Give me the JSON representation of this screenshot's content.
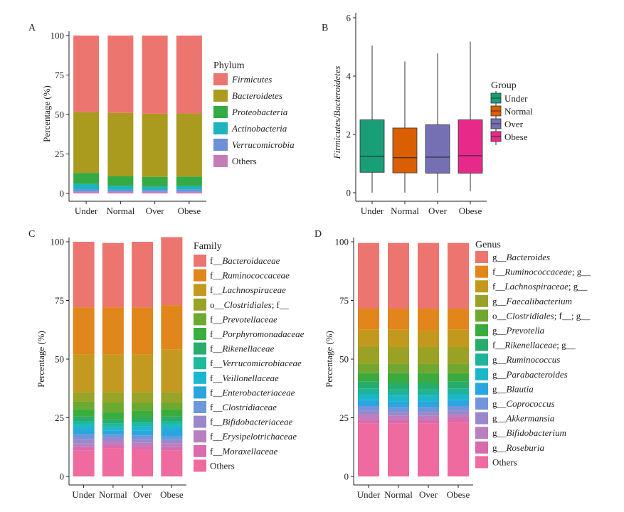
{
  "figure": {
    "panels": [
      {
        "id": "A",
        "letter": "A",
        "ylabel": "Percentage (%)",
        "legend_title": "Phylum"
      },
      {
        "id": "B",
        "letter": "B",
        "ylabel": "Firmicutes/Bacteroidetes",
        "legend_title": "Group"
      },
      {
        "id": "C",
        "letter": "C",
        "ylabel": "Percentage (%)",
        "legend_title": "Family"
      },
      {
        "id": "D",
        "letter": "D",
        "ylabel": "Percentage (%)",
        "legend_title": "Genus"
      }
    ]
  },
  "chart_data": [
    {
      "panel": "A",
      "type": "bar",
      "stacked": true,
      "categories": [
        "Under",
        "Normal",
        "Over",
        "Obese"
      ],
      "ylim": [
        0,
        100
      ],
      "yticks": [
        0,
        25,
        50,
        75,
        100
      ],
      "xlabel": "",
      "ylabel": "Percentage (%)",
      "legend_title": "Phylum",
      "series": [
        {
          "name": "Others",
          "prefix": "",
          "italic": "",
          "suffix": "",
          "display": "Others",
          "color": "#c77cba",
          "values": [
            1.0,
            1.0,
            1.0,
            1.0
          ]
        },
        {
          "name": "Verrucomicrobia",
          "prefix": "",
          "italic": "Verrucomicrobia",
          "suffix": "",
          "display": "Verrucomicrobia",
          "color": "#6d8fd8",
          "values": [
            1.5,
            1.3,
            1.2,
            1.4
          ]
        },
        {
          "name": "Actinobacteria",
          "prefix": "",
          "italic": "Actinobacteria",
          "suffix": "",
          "display": "Actinobacteria",
          "color": "#1fb3c0",
          "values": [
            3.5,
            2.5,
            2.0,
            2.3
          ]
        },
        {
          "name": "Proteobacteria",
          "prefix": "",
          "italic": "Proteobacteria",
          "suffix": "",
          "display": "Proteobacteria",
          "color": "#33aa44",
          "values": [
            7.0,
            6.2,
            6.3,
            6.0
          ]
        },
        {
          "name": "Bacteroidetes",
          "prefix": "",
          "italic": "Bacteroidetes",
          "suffix": "",
          "display": "Bacteroidetes",
          "color": "#aa9a1e",
          "values": [
            38.5,
            40.0,
            40.0,
            40.0
          ]
        },
        {
          "name": "Firmicutes",
          "prefix": "",
          "italic": "Firmicutes",
          "suffix": "",
          "display": "Firmicutes",
          "color": "#ec7570",
          "values": [
            48.5,
            49.0,
            49.5,
            49.3
          ]
        }
      ]
    },
    {
      "panel": "B",
      "type": "boxplot",
      "categories": [
        "Under",
        "Normal",
        "Over",
        "Obese"
      ],
      "ylim": [
        -0.3,
        6.2
      ],
      "yticks": [
        0,
        2,
        4,
        6
      ],
      "xlabel": "",
      "ylabel": "Firmicutes/Bacteroidetes",
      "legend_title": "Group",
      "series": [
        {
          "name": "Under",
          "color": "#1a9e77",
          "whisker_low": 0.0,
          "q1": 0.7,
          "median": 1.25,
          "q3": 2.5,
          "whisker_high": 5.05
        },
        {
          "name": "Normal",
          "color": "#d95f02",
          "whisker_low": 0.0,
          "q1": 0.68,
          "median": 1.2,
          "q3": 2.22,
          "whisker_high": 4.5
        },
        {
          "name": "Over",
          "color": "#7570b3",
          "whisker_low": 0.0,
          "q1": 0.67,
          "median": 1.22,
          "q3": 2.33,
          "whisker_high": 4.78
        },
        {
          "name": "Obese",
          "color": "#e7298a",
          "whisker_low": 0.05,
          "q1": 0.67,
          "median": 1.27,
          "q3": 2.5,
          "whisker_high": 5.18
        }
      ]
    },
    {
      "panel": "C",
      "type": "bar",
      "stacked": true,
      "categories": [
        "Under",
        "Normal",
        "Over",
        "Obese"
      ],
      "ylim": [
        0,
        100
      ],
      "yticks": [
        0,
        25,
        50,
        75,
        100
      ],
      "xlabel": "",
      "ylabel": "Percentage (%)",
      "legend_title": "Family",
      "series": [
        {
          "name": "Others",
          "prefix": "",
          "italic": "",
          "suffix": "",
          "display": "Others",
          "color": "#ef6a9f",
          "values": [
            11.0,
            12.0,
            11.5,
            11.0
          ]
        },
        {
          "name": "f__Moraxellaceae",
          "prefix": "f__",
          "italic": "Moraxellaceae",
          "suffix": "",
          "display": "f__Moraxellaceae",
          "color": "#d96bae",
          "values": [
            1.5,
            1.5,
            1.5,
            1.5
          ]
        },
        {
          "name": "f__Erysipelotrichaceae",
          "prefix": "f__",
          "italic": "Erysipelotrichaceae",
          "suffix": "",
          "display": "f__Erysipelotrichaceae",
          "color": "#b97fc0",
          "values": [
            1.5,
            1.5,
            1.5,
            1.5
          ]
        },
        {
          "name": "f__Bifidobacteriaceae",
          "prefix": "f__",
          "italic": "Bifidobacteriaceae",
          "suffix": "",
          "display": "f__Bifidobacteriaceae",
          "color": "#9a88cc",
          "values": [
            2.0,
            1.5,
            1.5,
            1.5
          ]
        },
        {
          "name": "f__Clostridiaceae",
          "prefix": "f__",
          "italic": "Clostridiaceae",
          "suffix": "",
          "display": "f__Clostridiaceae",
          "color": "#6e97d8",
          "values": [
            2.0,
            1.5,
            1.5,
            1.5
          ]
        },
        {
          "name": "f__Enterobacteriaceae",
          "prefix": "f__",
          "italic": "Enterobacteriaceae",
          "suffix": "",
          "display": "f__Enterobacteriaceae",
          "color": "#2ba5df",
          "values": [
            2.0,
            1.5,
            2.0,
            3.0
          ]
        },
        {
          "name": "f__Veillonellaceae",
          "prefix": "f__",
          "italic": "Veillonellaceae",
          "suffix": "",
          "display": "f__Veillonellaceae",
          "color": "#1cb6cf",
          "values": [
            2.0,
            1.5,
            2.0,
            2.0
          ]
        },
        {
          "name": "f__Verrucomicrobiaceae",
          "prefix": "f__",
          "italic": "Verrucomicrobiaceae",
          "suffix": "",
          "display": "f__Verrucomicrobiaceae",
          "color": "#1dba9c",
          "values": [
            1.5,
            1.5,
            1.5,
            1.5
          ]
        },
        {
          "name": "f__Rikenellaceae",
          "prefix": "f__",
          "italic": "Rikenellaceae",
          "suffix": "",
          "display": "f__Rikenellaceae",
          "color": "#28ad6c",
          "values": [
            2.0,
            2.0,
            2.0,
            2.0
          ]
        },
        {
          "name": "f__Porphyromonadaceae",
          "prefix": "f__",
          "italic": "Porphyromonadaceae",
          "suffix": "",
          "display": "f__Porphyromonadaceae",
          "color": "#3aad3d",
          "values": [
            3.0,
            3.0,
            3.0,
            3.0
          ]
        },
        {
          "name": "f__Prevotellaceae",
          "prefix": "f__",
          "italic": "Prevotellaceae",
          "suffix": "",
          "display": "f__Prevotellaceae",
          "color": "#6ba931",
          "values": [
            3.5,
            4.0,
            3.5,
            3.0
          ]
        },
        {
          "name": "o__Clostridiales; f__",
          "prefix": "o__",
          "italic": "Clostridiales",
          "suffix": "; f__",
          "display": "o__Clostridiales; f__",
          "color": "#98a327",
          "values": [
            4.0,
            4.5,
            4.5,
            4.5
          ]
        },
        {
          "name": "f__Lachnospiraceae",
          "prefix": "f__",
          "italic": "Lachnospiraceae",
          "suffix": "",
          "display": "f__Lachnospiraceae",
          "color": "#c39a1f",
          "values": [
            16.0,
            16.0,
            16.0,
            18.0
          ]
        },
        {
          "name": "f__Ruminococcaceae",
          "prefix": "f__",
          "italic": "Ruminococcaceae",
          "suffix": "",
          "display": "f__Ruminococcaceae",
          "color": "#e0861a",
          "values": [
            20.0,
            20.0,
            20.0,
            19.0
          ]
        },
        {
          "name": "f__Bacteroidaceae",
          "prefix": "f__",
          "italic": "Bacteroidaceae",
          "suffix": "",
          "display": "f__Bacteroidaceae",
          "color": "#ec7570",
          "values": [
            28.0,
            27.5,
            28.0,
            29.0
          ]
        }
      ]
    },
    {
      "panel": "D",
      "type": "bar",
      "stacked": true,
      "categories": [
        "Under",
        "Normal",
        "Over",
        "Obese"
      ],
      "ylim": [
        0,
        100
      ],
      "yticks": [
        0,
        25,
        50,
        75,
        100
      ],
      "xlabel": "",
      "ylabel": "Percentage (%)",
      "legend_title": "Genus",
      "series": [
        {
          "name": "Others",
          "prefix": "",
          "italic": "",
          "suffix": "",
          "display": "Others",
          "color": "#ef6a9f",
          "values": [
            22.5,
            22.5,
            22.5,
            23.0
          ]
        },
        {
          "name": "g__Roseburia",
          "prefix": "g__",
          "italic": "Roseburia",
          "suffix": "",
          "display": "g__Roseburia",
          "color": "#d86aae",
          "values": [
            2.0,
            2.0,
            2.0,
            2.0
          ]
        },
        {
          "name": "g__Bifidobacterium",
          "prefix": "g__",
          "italic": "Bifidobacterium",
          "suffix": "",
          "display": "g__Bifidobacterium",
          "color": "#b97fc0",
          "values": [
            2.0,
            1.5,
            1.5,
            1.5
          ]
        },
        {
          "name": "g__Akkermansia",
          "prefix": "g__",
          "italic": "Akkermansia",
          "suffix": "",
          "display": "g__Akkermansia",
          "color": "#9a88cc",
          "values": [
            1.5,
            1.5,
            1.5,
            1.5
          ]
        },
        {
          "name": "g__Coprococcus",
          "prefix": "g__",
          "italic": "Coprococcus",
          "suffix": "",
          "display": "g__Coprococcus",
          "color": "#7294d8",
          "values": [
            2.0,
            2.0,
            2.0,
            2.0
          ]
        },
        {
          "name": "g__Blautia",
          "prefix": "g__",
          "italic": "Blautia",
          "suffix": "",
          "display": "g__Blautia",
          "color": "#29a6df",
          "values": [
            2.5,
            2.5,
            2.5,
            2.5
          ]
        },
        {
          "name": "g__Parabacteroides",
          "prefix": "g__",
          "italic": "Parabacteroides",
          "suffix": "",
          "display": "g__Parabacteroides",
          "color": "#1bb7c9",
          "values": [
            2.5,
            2.5,
            2.5,
            2.5
          ]
        },
        {
          "name": "g__Ruminococcus",
          "prefix": "g__",
          "italic": "Ruminococcus",
          "suffix": "",
          "display": "g__Ruminococcus",
          "color": "#1fb39a",
          "values": [
            2.5,
            2.5,
            2.5,
            2.5
          ]
        },
        {
          "name": "f__Rikenellaceae; g__",
          "prefix": "f__",
          "italic": "Rikenellaceae",
          "suffix": "; g__",
          "display": "f__Rikenellaceae; g__",
          "color": "#27ad6b",
          "values": [
            3.0,
            3.0,
            3.0,
            3.0
          ]
        },
        {
          "name": "g__Prevotella",
          "prefix": "g__",
          "italic": "Prevotella",
          "suffix": "",
          "display": "g__Prevotella",
          "color": "#3aab3c",
          "values": [
            3.5,
            4.0,
            4.0,
            3.5
          ]
        },
        {
          "name": "o__Clostridiales; f__; g__",
          "prefix": "o__",
          "italic": "Clostridiales",
          "suffix": "; f__; g__",
          "display": "o__Clostridiales; f__; g__",
          "color": "#71a730",
          "values": [
            4.0,
            4.0,
            4.0,
            4.0
          ]
        },
        {
          "name": "g__Faecalibacterium",
          "prefix": "g__",
          "italic": "Faecalibacterium",
          "suffix": "",
          "display": "g__Faecalibacterium",
          "color": "#9aa125",
          "values": [
            7.5,
            7.0,
            7.0,
            7.0
          ]
        },
        {
          "name": "f__Lachnospiraceae; g__",
          "prefix": "f__",
          "italic": "Lachnospiraceae",
          "suffix": "; g__",
          "display": "f__Lachnospiraceae; g__",
          "color": "#c2991c",
          "values": [
            7.0,
            7.5,
            7.0,
            7.5
          ]
        },
        {
          "name": "f__Ruminococcaceae; g__",
          "prefix": "f__",
          "italic": "Ruminococcaceae",
          "suffix": "; g__",
          "display": "f__Ruminococcaceae; g__",
          "color": "#e2861b",
          "values": [
            9.0,
            9.0,
            9.5,
            9.0
          ]
        },
        {
          "name": "g__Bacteroides",
          "prefix": "g__",
          "italic": "Bacteroides",
          "suffix": "",
          "display": "g__Bacteroides",
          "color": "#ec7570",
          "values": [
            28.0,
            28.0,
            28.0,
            28.0
          ]
        }
      ]
    }
  ]
}
